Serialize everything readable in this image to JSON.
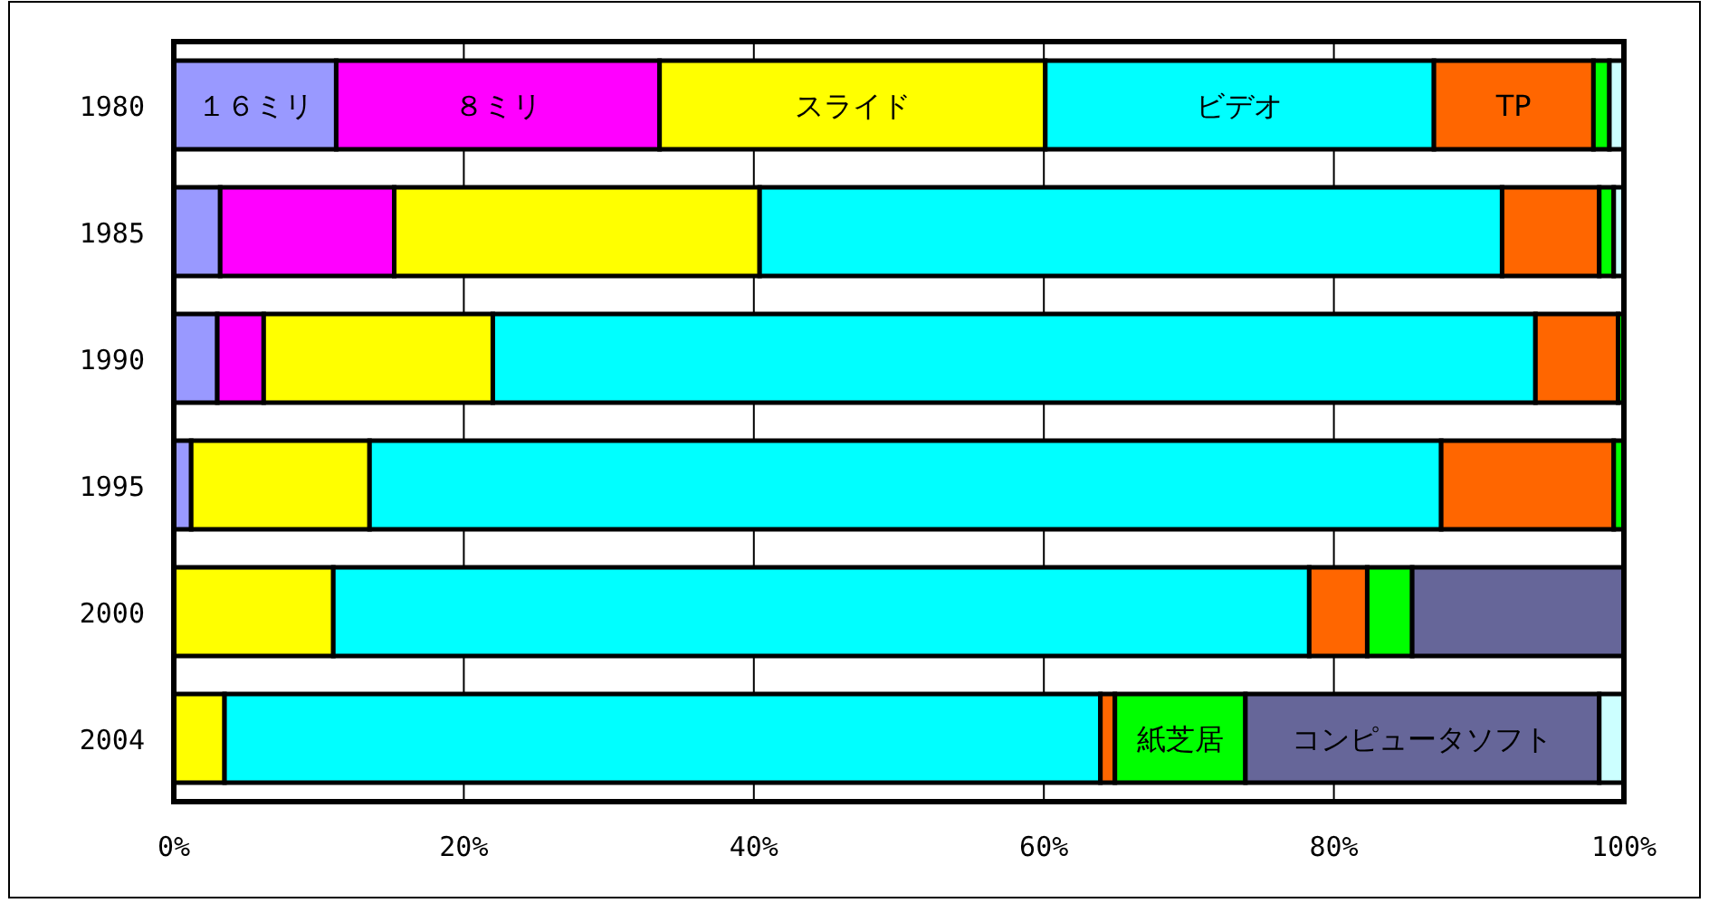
{
  "chart_data": {
    "type": "bar",
    "orientation": "horizontal",
    "stacked": true,
    "grid": "x",
    "categories": [
      "1980",
      "1985",
      "1990",
      "1995",
      "2000",
      "2004"
    ],
    "xlim": [
      0,
      100
    ],
    "xticks": [
      {
        "value": 0,
        "label": "0%"
      },
      {
        "value": 20,
        "label": "20%"
      },
      {
        "value": 40,
        "label": "40%"
      },
      {
        "value": 60,
        "label": "60%"
      },
      {
        "value": 80,
        "label": "80%"
      },
      {
        "value": 100,
        "label": "100%"
      }
    ],
    "series": [
      {
        "name": "１６ミリ",
        "color": "#9999ff",
        "values": [
          11.2,
          3.2,
          3.0,
          1.2,
          null,
          null
        ]
      },
      {
        "name": "８ミリ",
        "color": "#ff00ff",
        "values": [
          22.3,
          12.0,
          3.2,
          null,
          null,
          null
        ]
      },
      {
        "name": "スライド",
        "color": "#ffff00",
        "values": [
          26.6,
          25.2,
          15.8,
          12.3,
          11.0,
          3.5
        ]
      },
      {
        "name": "ビデオ",
        "color": "#00ffff",
        "values": [
          26.8,
          51.2,
          71.9,
          73.9,
          67.3,
          60.4
        ]
      },
      {
        "name": "TP",
        "color": "#ff6600",
        "values": [
          11.0,
          6.7,
          5.7,
          11.9,
          4.0,
          1.0
        ]
      },
      {
        "name": "紙芝居",
        "color": "#00ff00",
        "values": [
          1.1,
          1.0,
          0.4,
          0.7,
          3.1,
          9.0
        ]
      },
      {
        "name": "コンピュータソフト",
        "color": "#666699",
        "values": [
          null,
          null,
          null,
          null,
          14.6,
          24.4
        ]
      },
      {
        "color": "#ccffff",
        "values": [
          1.0,
          0.7,
          null,
          null,
          null,
          1.7
        ]
      }
    ]
  }
}
